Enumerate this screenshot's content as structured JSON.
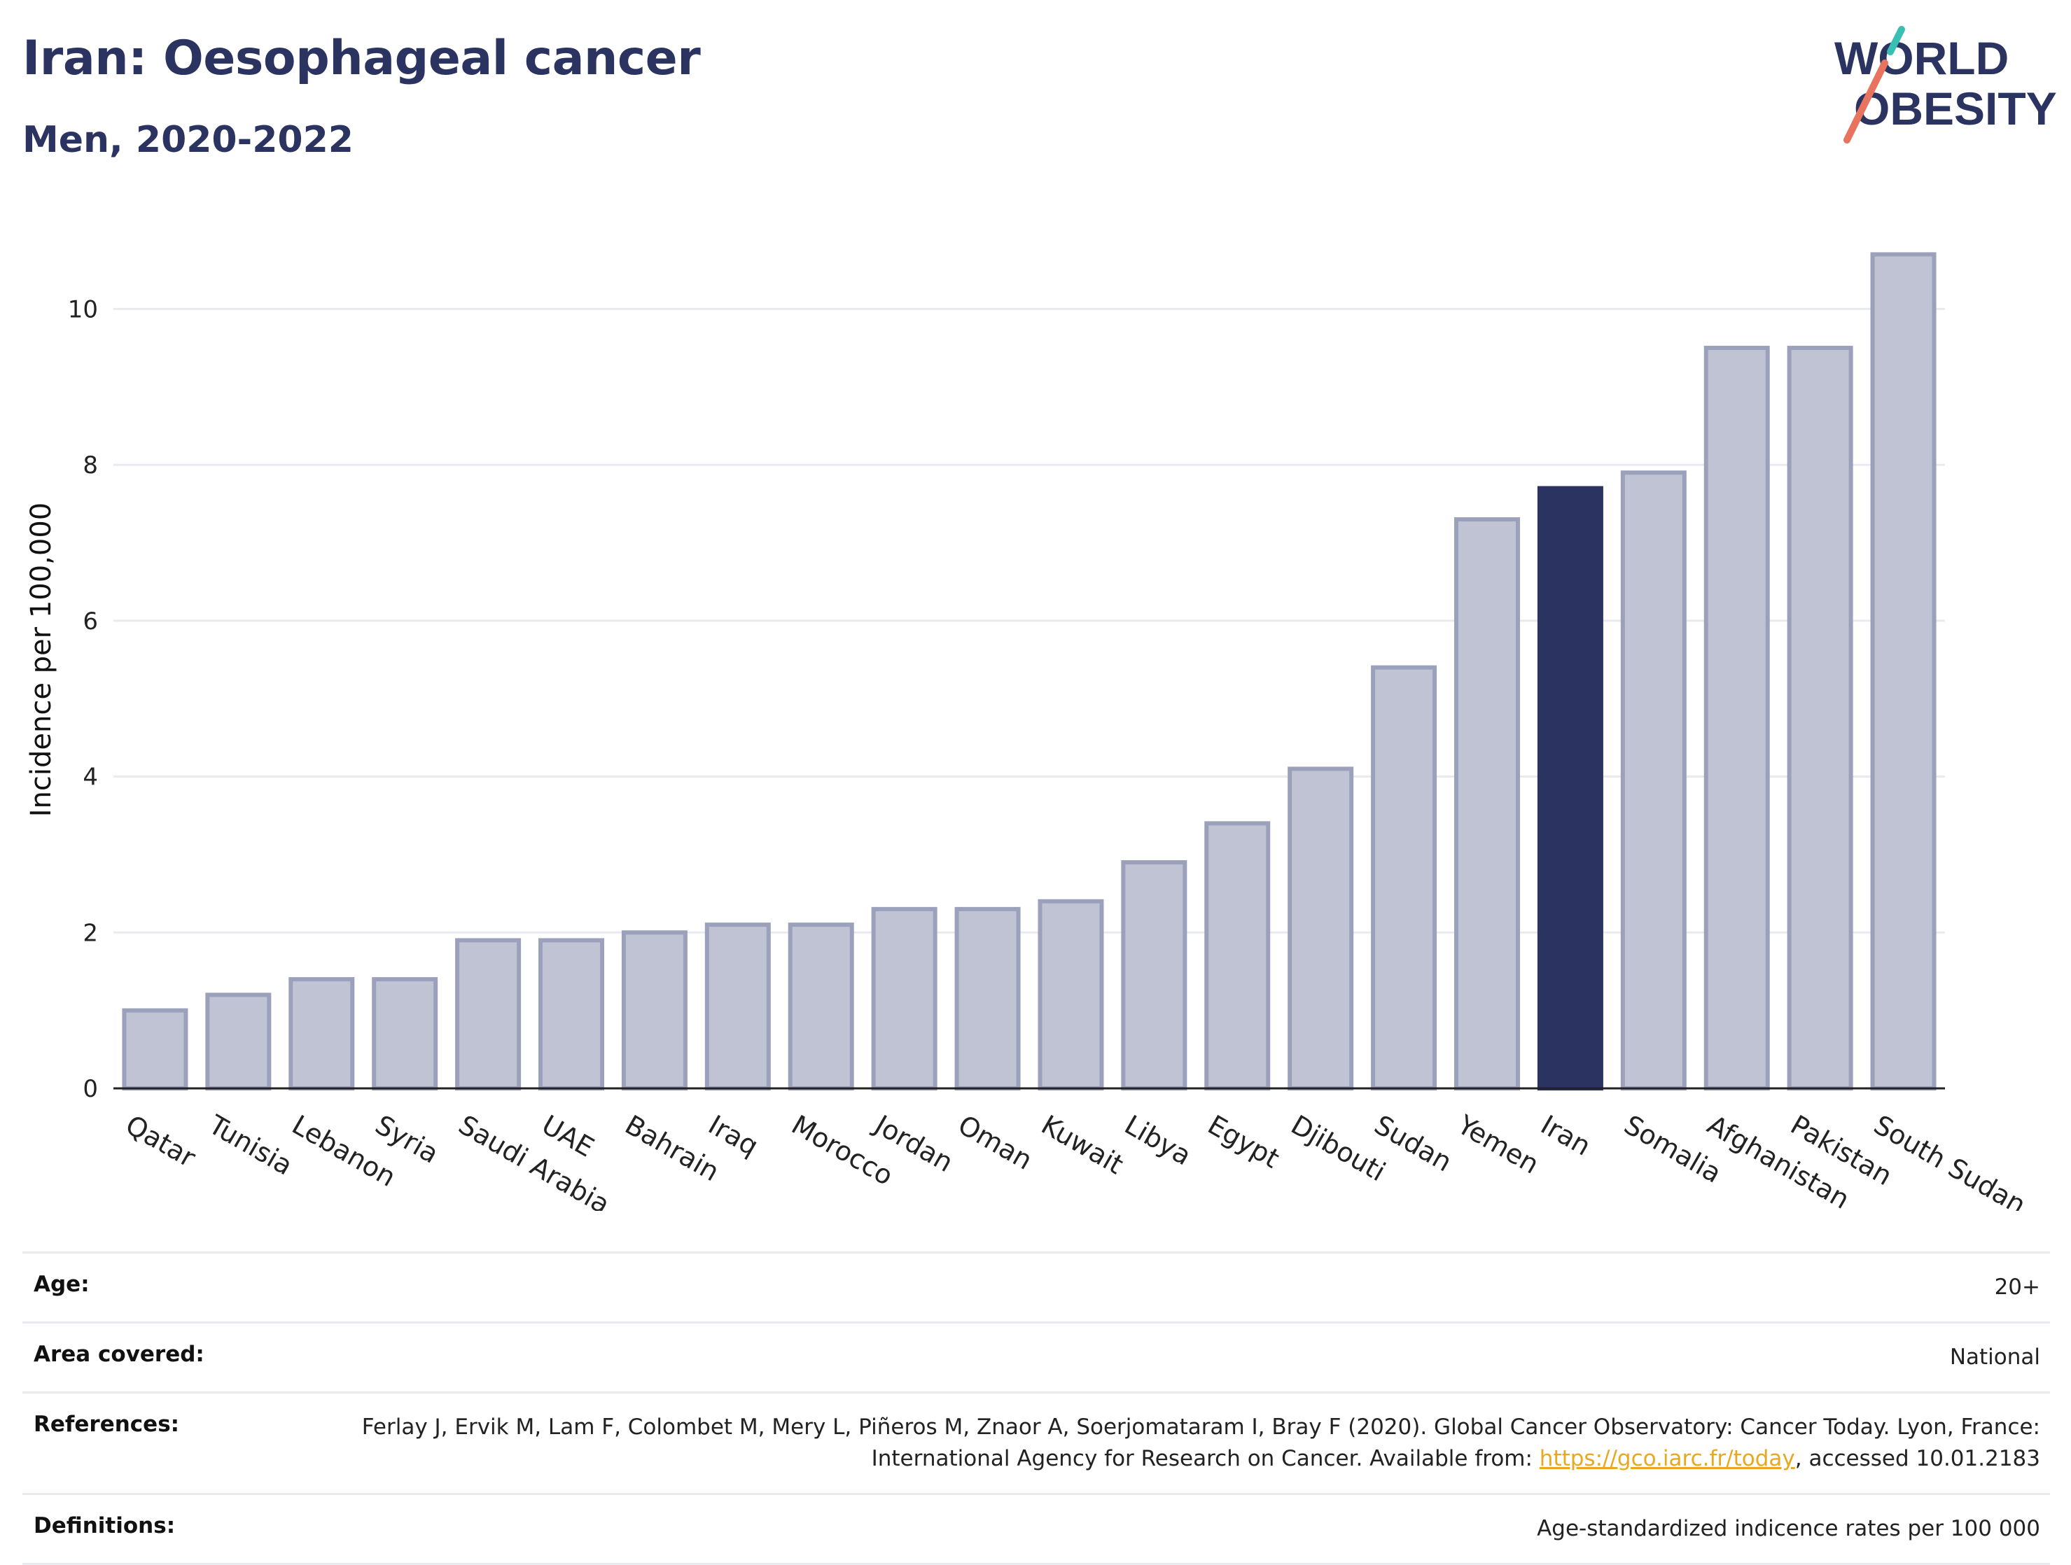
{
  "header": {
    "title": "Iran: Oesophageal cancer",
    "subtitle": "Men, 2020-2022"
  },
  "logo": {
    "line1": "WORLD",
    "line2": "OBESITY"
  },
  "chart_data": {
    "type": "bar",
    "title": "Iran: Oesophageal cancer",
    "subtitle": "Men, 2020-2022",
    "ylabel": "Incidence per 100,000",
    "xlabel": "",
    "ylim": [
      0,
      11
    ],
    "yticks": [
      0,
      2,
      4,
      6,
      8,
      10
    ],
    "grid": true,
    "highlight": "Iran",
    "categories": [
      "Qatar",
      "Tunisia",
      "Lebanon",
      "Syria",
      "Saudi Arabia",
      "UAE",
      "Bahrain",
      "Iraq",
      "Morocco",
      "Jordan",
      "Oman",
      "Kuwait",
      "Libya",
      "Egypt",
      "Djibouti",
      "Sudan",
      "Yemen",
      "Iran",
      "Somalia",
      "Afghanistan",
      "Pakistan",
      "South Sudan"
    ],
    "values": [
      1.0,
      1.2,
      1.4,
      1.4,
      1.9,
      1.9,
      2.0,
      2.1,
      2.1,
      2.3,
      2.3,
      2.4,
      2.9,
      3.4,
      4.1,
      5.4,
      7.3,
      7.7,
      7.9,
      9.5,
      9.5,
      10.7
    ],
    "colors": {
      "bar": "#c0c3d3",
      "bar_border": "#9ca1bb",
      "highlight": "#2b3360",
      "grid": "#e8eaf0",
      "axis": "#222222"
    }
  },
  "info": {
    "age_label": "Age:",
    "age_value": "20+",
    "area_label": "Area covered:",
    "area_value": "National",
    "references_label": "References:",
    "references_text_1": "Ferlay J, Ervik M, Lam F, Colombet M, Mery L, Piñeros M, Znaor A, Soerjomataram I, Bray F (2020). Global Cancer Observatory: Cancer Today. Lyon, France: International Agency for Research on Cancer. Available from: ",
    "references_link": "https://gco.iarc.fr/today",
    "references_text_2": ", accessed 10.01.2183",
    "definitions_label": "Definitions:",
    "definitions_value": "Age-standardized indicence rates per 100 000"
  }
}
